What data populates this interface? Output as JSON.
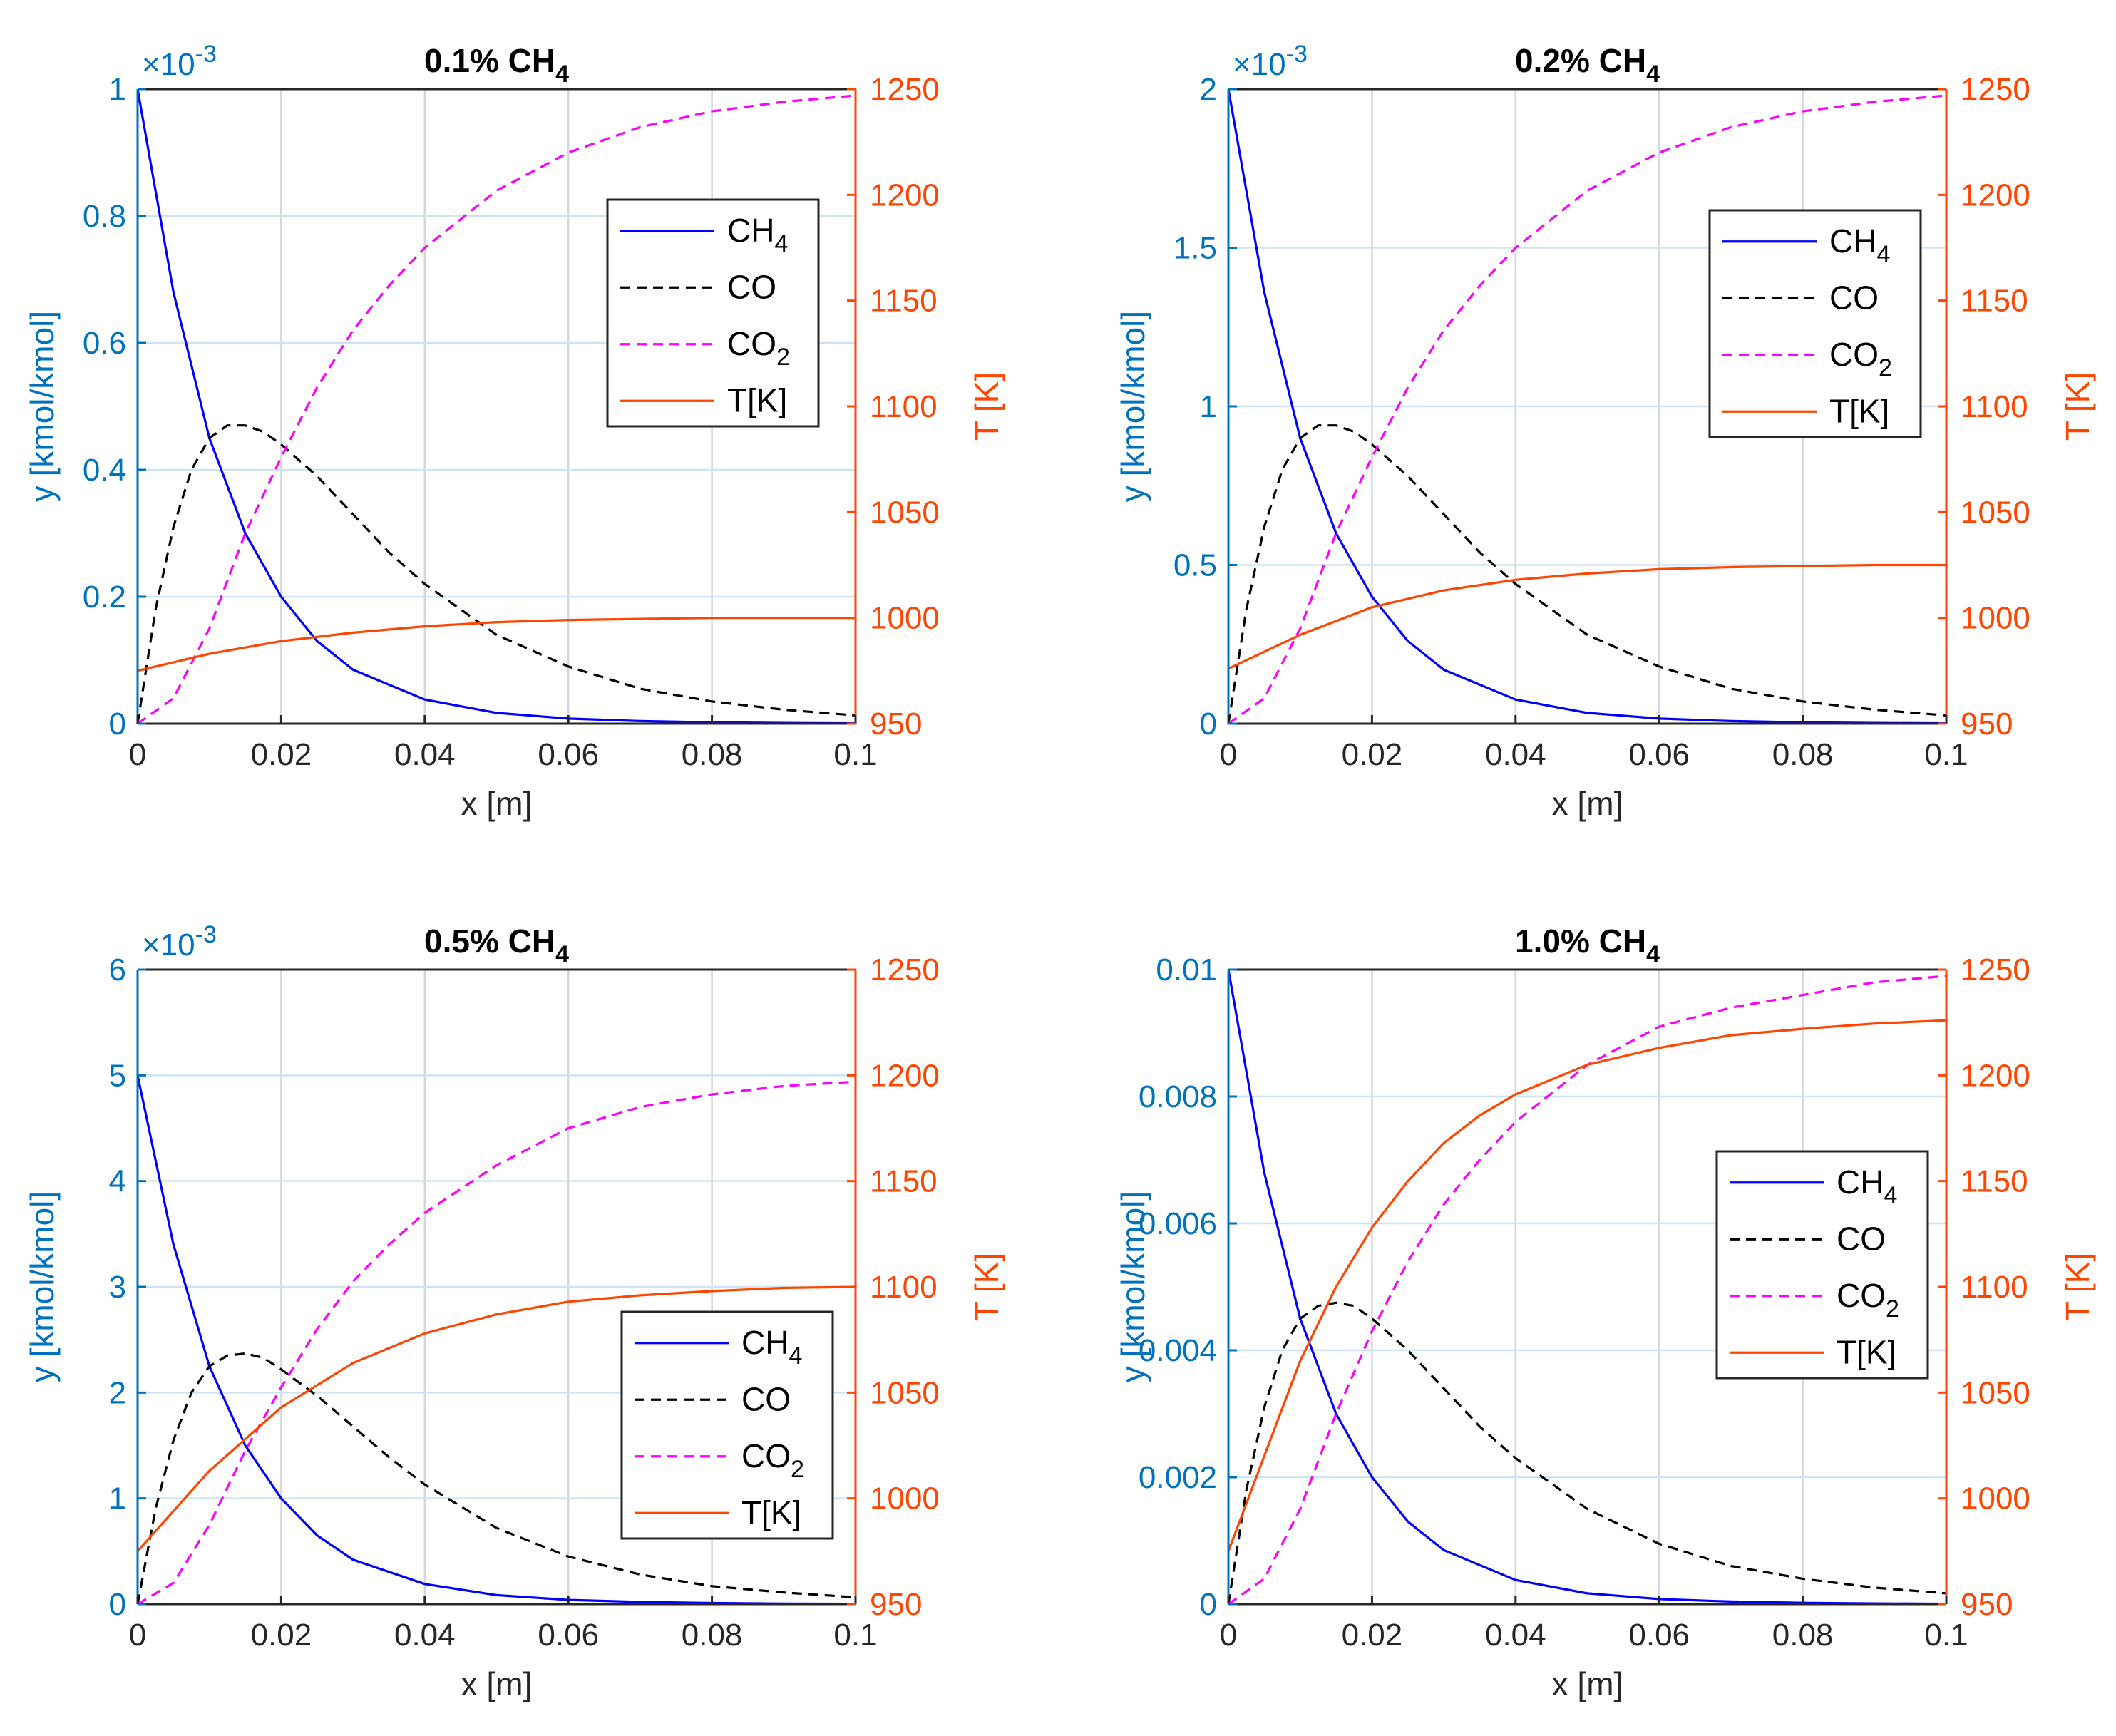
{
  "colors": {
    "left_axis": "#0072BD",
    "right_axis": "#FF4500",
    "ch4": "#0000FF",
    "co": "#000000",
    "co2": "#FF00FF",
    "temp": "#FF4500",
    "grid": "#d6dbe2"
  },
  "chart_data": [
    {
      "type": "line",
      "title": "0.1% CH",
      "title_sub": "4",
      "xlabel": "x [m]",
      "ylabel": "y [kmol/kmol]",
      "y2label": "T [K]",
      "xlim": [
        0,
        0.1
      ],
      "ylim": [
        0,
        1
      ],
      "y2lim": [
        950,
        1250
      ],
      "xticks": [
        "0",
        "0.02",
        "0.04",
        "0.06",
        "0.08",
        "0.1"
      ],
      "yticks": [
        "0",
        "0.2",
        "0.4",
        "0.6",
        "0.8",
        "1"
      ],
      "y2ticks": [
        "950",
        "1000",
        "1050",
        "1100",
        "1150",
        "1200",
        "1250"
      ],
      "exponent_label": "×10",
      "exponent_power": "-3",
      "legend": {
        "position": "upper-right",
        "entries": [
          "CH",
          "CO",
          "CO",
          "T[K]"
        ],
        "subscripts": [
          "4",
          "",
          "2",
          ""
        ]
      },
      "series": [
        {
          "name": "CH4",
          "axis": "left",
          "style": "solid",
          "color": "#0000FF",
          "x": [
            0,
            0.005,
            0.01,
            0.015,
            0.02,
            0.025,
            0.03,
            0.04,
            0.05,
            0.06,
            0.07,
            0.08,
            0.09,
            0.1
          ],
          "y": [
            1.0,
            0.68,
            0.45,
            0.3,
            0.2,
            0.13,
            0.085,
            0.038,
            0.017,
            0.008,
            0.004,
            0.002,
            0.001,
            0.0005
          ]
        },
        {
          "name": "CO",
          "axis": "left",
          "style": "dashed",
          "color": "#000000",
          "x": [
            0,
            0.0025,
            0.005,
            0.0075,
            0.01,
            0.0125,
            0.015,
            0.0175,
            0.02,
            0.025,
            0.03,
            0.035,
            0.04,
            0.05,
            0.06,
            0.07,
            0.08,
            0.09,
            0.1
          ],
          "y": [
            0,
            0.18,
            0.31,
            0.4,
            0.45,
            0.47,
            0.47,
            0.46,
            0.44,
            0.39,
            0.33,
            0.27,
            0.22,
            0.14,
            0.09,
            0.055,
            0.035,
            0.022,
            0.013
          ]
        },
        {
          "name": "CO2",
          "axis": "left",
          "style": "dashed",
          "color": "#FF00FF",
          "x": [
            0,
            0.005,
            0.01,
            0.015,
            0.02,
            0.025,
            0.03,
            0.035,
            0.04,
            0.05,
            0.06,
            0.07,
            0.08,
            0.09,
            0.1
          ],
          "y": [
            0,
            0.04,
            0.15,
            0.3,
            0.42,
            0.53,
            0.62,
            0.69,
            0.75,
            0.84,
            0.9,
            0.94,
            0.965,
            0.98,
            0.99
          ]
        },
        {
          "name": "T[K]",
          "axis": "right",
          "style": "solid",
          "color": "#FF4500",
          "x": [
            0,
            0.01,
            0.02,
            0.03,
            0.04,
            0.05,
            0.06,
            0.07,
            0.08,
            0.09,
            0.1
          ],
          "y": [
            975,
            983,
            989,
            993,
            996,
            998,
            999,
            999.5,
            1000,
            1000,
            1000
          ]
        }
      ]
    },
    {
      "type": "line",
      "title": "0.2% CH",
      "title_sub": "4",
      "xlabel": "x [m]",
      "ylabel": "y [kmol/kmol]",
      "y2label": "T [K]",
      "xlim": [
        0,
        0.1
      ],
      "ylim": [
        0,
        2
      ],
      "y2lim": [
        950,
        1250
      ],
      "xticks": [
        "0",
        "0.02",
        "0.04",
        "0.06",
        "0.08",
        "0.1"
      ],
      "yticks": [
        "0",
        "0.5",
        "1",
        "1.5",
        "2"
      ],
      "y2ticks": [
        "950",
        "1000",
        "1050",
        "1100",
        "1150",
        "1200",
        "1250"
      ],
      "exponent_label": "×10",
      "exponent_power": "-3",
      "legend": {
        "position": "upper-right",
        "entries": [
          "CH",
          "CO",
          "CO",
          "T[K]"
        ],
        "subscripts": [
          "4",
          "",
          "2",
          ""
        ]
      },
      "series": [
        {
          "name": "CH4",
          "axis": "left",
          "style": "solid",
          "color": "#0000FF",
          "x": [
            0,
            0.005,
            0.01,
            0.015,
            0.02,
            0.025,
            0.03,
            0.04,
            0.05,
            0.06,
            0.07,
            0.08,
            0.09,
            0.1
          ],
          "y": [
            2.0,
            1.36,
            0.9,
            0.6,
            0.4,
            0.26,
            0.17,
            0.076,
            0.034,
            0.016,
            0.008,
            0.004,
            0.002,
            0.001
          ]
        },
        {
          "name": "CO",
          "axis": "left",
          "style": "dashed",
          "color": "#000000",
          "x": [
            0,
            0.0025,
            0.005,
            0.0075,
            0.01,
            0.0125,
            0.015,
            0.0175,
            0.02,
            0.025,
            0.03,
            0.035,
            0.04,
            0.05,
            0.06,
            0.07,
            0.08,
            0.09,
            0.1
          ],
          "y": [
            0,
            0.36,
            0.62,
            0.8,
            0.9,
            0.94,
            0.94,
            0.92,
            0.88,
            0.78,
            0.66,
            0.54,
            0.44,
            0.28,
            0.18,
            0.11,
            0.07,
            0.044,
            0.026
          ]
        },
        {
          "name": "CO2",
          "axis": "left",
          "style": "dashed",
          "color": "#FF00FF",
          "x": [
            0,
            0.005,
            0.01,
            0.015,
            0.02,
            0.025,
            0.03,
            0.035,
            0.04,
            0.05,
            0.06,
            0.07,
            0.08,
            0.09,
            0.1
          ],
          "y": [
            0,
            0.08,
            0.3,
            0.6,
            0.84,
            1.06,
            1.24,
            1.38,
            1.5,
            1.68,
            1.8,
            1.88,
            1.93,
            1.96,
            1.98
          ]
        },
        {
          "name": "T[K]",
          "axis": "right",
          "style": "solid",
          "color": "#FF4500",
          "x": [
            0,
            0.01,
            0.02,
            0.03,
            0.04,
            0.05,
            0.06,
            0.07,
            0.08,
            0.09,
            0.1
          ],
          "y": [
            976,
            992,
            1005,
            1013,
            1018,
            1021,
            1023,
            1024,
            1024.5,
            1025,
            1025
          ]
        }
      ]
    },
    {
      "type": "line",
      "title": "0.5% CH",
      "title_sub": "4",
      "xlabel": "x [m]",
      "ylabel": "y [kmol/kmol]",
      "y2label": "T [K]",
      "xlim": [
        0,
        0.1
      ],
      "ylim": [
        0,
        6
      ],
      "y2lim": [
        950,
        1250
      ],
      "xticks": [
        "0",
        "0.02",
        "0.04",
        "0.06",
        "0.08",
        "0.1"
      ],
      "yticks": [
        "0",
        "1",
        "2",
        "3",
        "4",
        "5",
        "6"
      ],
      "y2ticks": [
        "950",
        "1000",
        "1050",
        "1100",
        "1150",
        "1200",
        "1250"
      ],
      "exponent_label": "×10",
      "exponent_power": "-3",
      "legend": {
        "position": "lower-right",
        "entries": [
          "CH",
          "CO",
          "CO",
          "T[K]"
        ],
        "subscripts": [
          "4",
          "",
          "2",
          ""
        ]
      },
      "series": [
        {
          "name": "CH4",
          "axis": "left",
          "style": "solid",
          "color": "#0000FF",
          "x": [
            0,
            0.005,
            0.01,
            0.015,
            0.02,
            0.025,
            0.03,
            0.04,
            0.05,
            0.06,
            0.07,
            0.08,
            0.09,
            0.1
          ],
          "y": [
            5.0,
            3.4,
            2.25,
            1.5,
            1.0,
            0.65,
            0.42,
            0.19,
            0.085,
            0.04,
            0.02,
            0.01,
            0.005,
            0.0025
          ]
        },
        {
          "name": "CO",
          "axis": "left",
          "style": "dashed",
          "color": "#000000",
          "x": [
            0,
            0.0025,
            0.005,
            0.0075,
            0.01,
            0.0125,
            0.015,
            0.0175,
            0.02,
            0.025,
            0.03,
            0.035,
            0.04,
            0.05,
            0.06,
            0.07,
            0.08,
            0.09,
            0.1
          ],
          "y": [
            0,
            0.9,
            1.55,
            2.0,
            2.25,
            2.35,
            2.37,
            2.33,
            2.22,
            1.97,
            1.68,
            1.39,
            1.13,
            0.72,
            0.45,
            0.28,
            0.17,
            0.11,
            0.065
          ]
        },
        {
          "name": "CO2",
          "axis": "left",
          "style": "dashed",
          "color": "#FF00FF",
          "x": [
            0,
            0.005,
            0.01,
            0.015,
            0.02,
            0.025,
            0.03,
            0.035,
            0.04,
            0.05,
            0.06,
            0.07,
            0.08,
            0.09,
            0.1
          ],
          "y": [
            0,
            0.2,
            0.75,
            1.45,
            2.05,
            2.6,
            3.05,
            3.4,
            3.7,
            4.15,
            4.5,
            4.7,
            4.82,
            4.9,
            4.94
          ]
        },
        {
          "name": "T[K]",
          "axis": "right",
          "style": "solid",
          "color": "#FF4500",
          "x": [
            0,
            0.01,
            0.02,
            0.03,
            0.04,
            0.05,
            0.06,
            0.07,
            0.08,
            0.09,
            0.1
          ],
          "y": [
            975,
            1013,
            1043,
            1064,
            1078,
            1087,
            1093,
            1096,
            1098,
            1099.5,
            1100
          ]
        }
      ]
    },
    {
      "type": "line",
      "title": "1.0% CH",
      "title_sub": "4",
      "xlabel": "x [m]",
      "ylabel": "y [kmol/kmol]",
      "y2label": "T [K]",
      "xlim": [
        0,
        0.1
      ],
      "ylim": [
        0,
        0.01
      ],
      "y2lim": [
        950,
        1250
      ],
      "xticks": [
        "0",
        "0.02",
        "0.04",
        "0.06",
        "0.08",
        "0.1"
      ],
      "yticks": [
        "0",
        "0.002",
        "0.004",
        "0.006",
        "0.008",
        "0.01"
      ],
      "y2ticks": [
        "950",
        "1000",
        "1050",
        "1100",
        "1150",
        "1200",
        "1250"
      ],
      "exponent_label": "",
      "exponent_power": "",
      "legend": {
        "position": "middle-right",
        "entries": [
          "CH",
          "CO",
          "CO",
          "T[K]"
        ],
        "subscripts": [
          "4",
          "",
          "2",
          ""
        ]
      },
      "series": [
        {
          "name": "CH4",
          "axis": "left",
          "style": "solid",
          "color": "#0000FF",
          "x": [
            0,
            0.005,
            0.01,
            0.015,
            0.02,
            0.025,
            0.03,
            0.04,
            0.05,
            0.06,
            0.07,
            0.08,
            0.09,
            0.1
          ],
          "y": [
            0.01,
            0.0068,
            0.0045,
            0.003,
            0.002,
            0.0013,
            0.00085,
            0.00038,
            0.00017,
            8e-05,
            4e-05,
            2e-05,
            1e-05,
            5e-06
          ]
        },
        {
          "name": "CO",
          "axis": "left",
          "style": "dashed",
          "color": "#000000",
          "x": [
            0,
            0.0025,
            0.005,
            0.0075,
            0.01,
            0.0125,
            0.015,
            0.0175,
            0.02,
            0.025,
            0.03,
            0.035,
            0.04,
            0.05,
            0.06,
            0.07,
            0.08,
            0.09,
            0.1
          ],
          "y": [
            0,
            0.0018,
            0.0031,
            0.004,
            0.0045,
            0.0047,
            0.00475,
            0.0047,
            0.0045,
            0.004,
            0.0034,
            0.0028,
            0.0023,
            0.0015,
            0.00095,
            0.0006,
            0.0004,
            0.00026,
            0.00017
          ]
        },
        {
          "name": "CO2",
          "axis": "left",
          "style": "dashed",
          "color": "#FF00FF",
          "x": [
            0,
            0.005,
            0.01,
            0.015,
            0.02,
            0.025,
            0.03,
            0.035,
            0.04,
            0.05,
            0.06,
            0.07,
            0.08,
            0.09,
            0.1
          ],
          "y": [
            0,
            0.0004,
            0.0015,
            0.003,
            0.0043,
            0.0054,
            0.0063,
            0.007,
            0.0076,
            0.0085,
            0.0091,
            0.0094,
            0.0096,
            0.0098,
            0.0099
          ]
        },
        {
          "name": "T[K]",
          "axis": "right",
          "style": "solid",
          "color": "#FF4500",
          "x": [
            0,
            0.005,
            0.01,
            0.015,
            0.02,
            0.025,
            0.03,
            0.035,
            0.04,
            0.05,
            0.06,
            0.07,
            0.08,
            0.09,
            0.1
          ],
          "y": [
            975,
            1020,
            1065,
            1100,
            1128,
            1150,
            1168,
            1181,
            1191,
            1205,
            1213,
            1219,
            1222,
            1224.5,
            1226
          ]
        }
      ]
    }
  ]
}
